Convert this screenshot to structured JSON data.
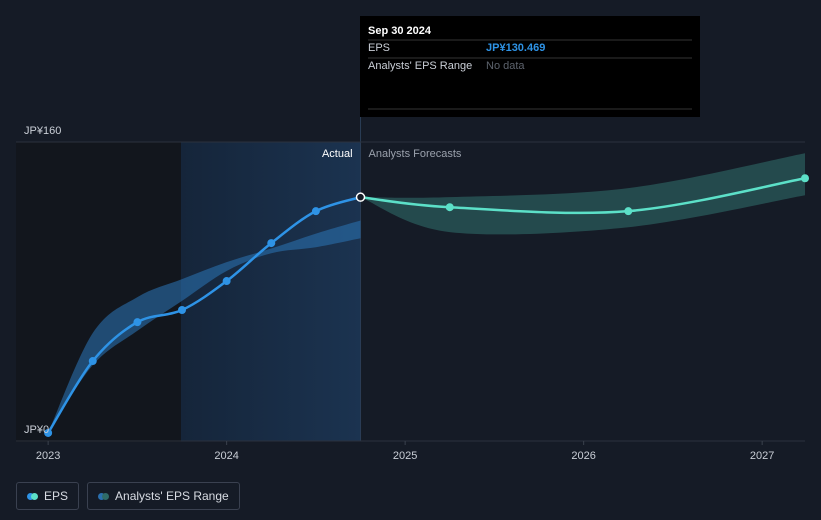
{
  "chart_data": {
    "type": "line",
    "xlim": [
      2022.82,
      2027.24
    ],
    "xticks": [
      2023,
      2024,
      2025,
      2026,
      2027
    ],
    "ylim": [
      0,
      160
    ],
    "yticks": [
      {
        "value": 0,
        "label": "JP¥0"
      },
      {
        "value": 160,
        "label": "JP¥160"
      }
    ],
    "grid": true,
    "series": [
      {
        "name": "EPS",
        "color": "#2e93e6",
        "x": [
          2023.0,
          2023.25,
          2023.5,
          2023.75,
          2024.0,
          2024.25,
          2024.5,
          2024.75
        ],
        "values": [
          4.3,
          42.8,
          63.6,
          70.1,
          85.6,
          105.9,
          123.0,
          130.5
        ]
      },
      {
        "color": "#5ce0c8",
        "x": [
          2024.75,
          2025.25,
          2026.25,
          2027.24
        ],
        "values": [
          130.5,
          125.1,
          123.0,
          140.6
        ]
      }
    ],
    "bands": {
      "name": "Analysts' EPS Range",
      "items": [
        {
          "color": "#2a6fae",
          "x": [
            2023.0,
            2023.25,
            2023.5,
            2023.75,
            2024.0,
            2024.25,
            2024.5,
            2024.75
          ],
          "low": [
            4.3,
            40.6,
            59.0,
            75.0,
            91.0,
            100.5,
            103.7,
            108.5
          ],
          "high": [
            4.3,
            57.8,
            77.0,
            86.6,
            95.7,
            103.0,
            111.0,
            118.0
          ]
        },
        {
          "color": "#2f6b68",
          "x": [
            2024.75,
            2025.25,
            2026.25,
            2027.24
          ],
          "low": [
            130.5,
            111.8,
            114.4,
            131.5
          ],
          "high": [
            130.5,
            130.5,
            135.3,
            154.0
          ]
        }
      ]
    },
    "region_labels": {
      "actual": "Actual",
      "forecast": "Analysts Forecasts"
    },
    "tooltip": {
      "date": "Sep 30 2024",
      "rows": [
        {
          "label": "EPS",
          "value": 130.469,
          "value_label": "JP¥130.469"
        },
        {
          "label": "Analysts' EPS Range",
          "value_label": "No data"
        }
      ]
    }
  }
}
